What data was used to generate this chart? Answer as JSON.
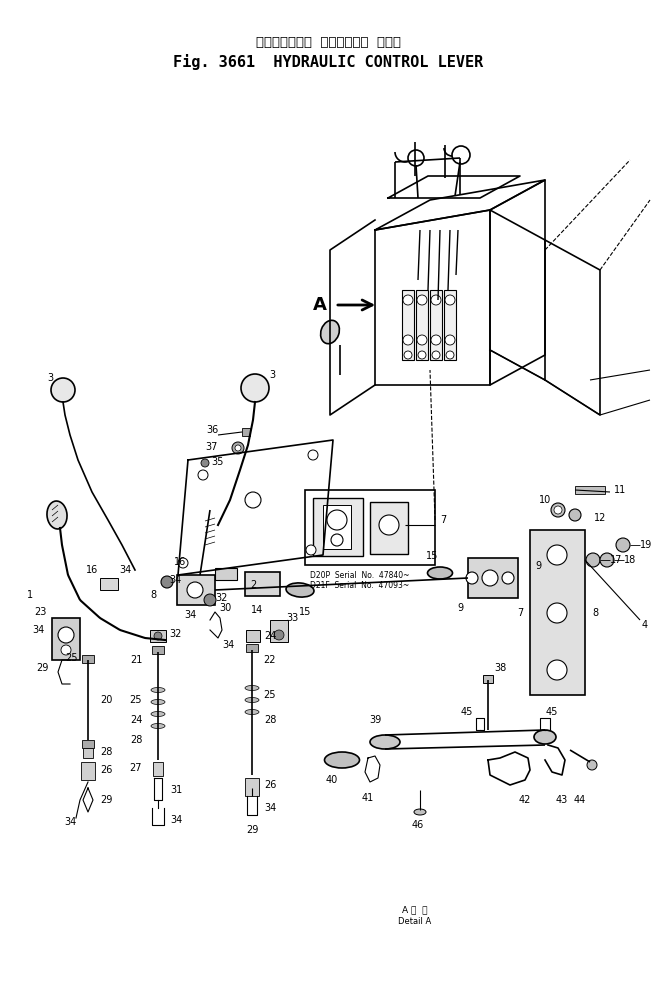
{
  "title_japanese": "ハイドロリック  コントロール  レバー",
  "title_english": "Fig. 3661  HYDRAULIC CONTROL LEVER",
  "background_color": "#ffffff",
  "line_color": "#000000",
  "fig_width": 6.56,
  "fig_height": 9.93,
  "dpi": 100,
  "detail_label_line1": "A 断  面",
  "detail_label_line2": "Detail A",
  "serial_text1": "D20P  Serial  No.  47840~",
  "serial_text2": "D21F  Serial  No.  47093~"
}
